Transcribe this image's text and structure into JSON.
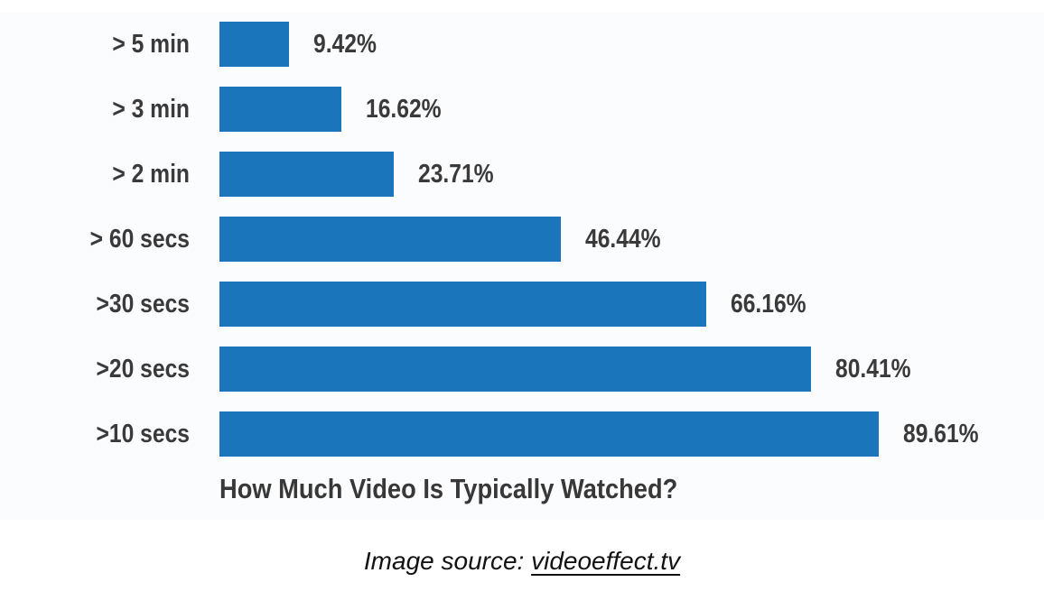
{
  "chart_data": {
    "type": "bar",
    "orientation": "horizontal",
    "title": "How Much Video Is Typically Watched?",
    "categories": [
      "> 5 min",
      "> 3 min",
      "> 2 min",
      "> 60 secs",
      ">30 secs",
      ">20 secs",
      ">10 secs"
    ],
    "values": [
      9.42,
      16.62,
      23.71,
      46.44,
      66.16,
      80.41,
      89.61
    ],
    "value_labels": [
      "9.42%",
      "16.62%",
      "23.71%",
      "46.44%",
      "66.16%",
      "80.41%",
      "89.61%"
    ],
    "xlim": [
      0,
      100
    ],
    "grid": false,
    "legend": false,
    "bar_color": "#1b75bb",
    "label_color": "#3a3a3a",
    "panel_background": "#fbfcfe"
  },
  "footer": {
    "source_prefix": "Image source: ",
    "source_link": "videoeffect.tv"
  }
}
